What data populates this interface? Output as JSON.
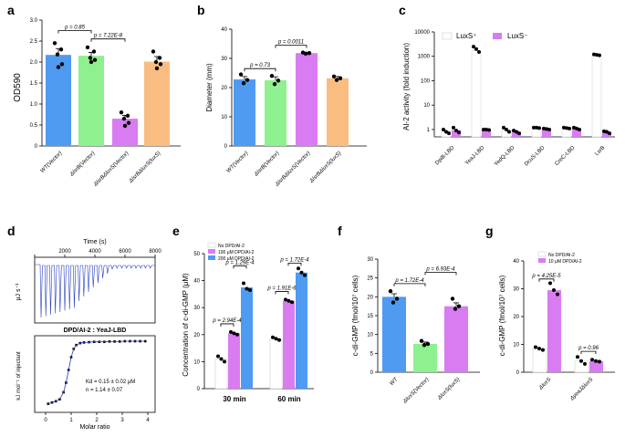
{
  "panels": {
    "a": "a",
    "b": "b",
    "c": "c",
    "d": "d",
    "e": "e",
    "f": "f",
    "g": "g"
  },
  "colors": {
    "blue": "#4f9bf2",
    "green": "#8ff08f",
    "purple": "#d97cf2",
    "orange": "#f9bd82"
  },
  "chart_data": [
    {
      "id": "a",
      "type": "bar",
      "title": "",
      "xlabel": "",
      "ylabel": "OD590",
      "ylim": [
        0,
        3.0
      ],
      "yticks": [
        "0",
        "0.5",
        "1.0",
        "1.5",
        "2.0",
        "2.5",
        "3.0"
      ],
      "categories": [
        "WT(Vector)",
        "ΔlsrB(Vector)",
        "ΔlsrBΔluxS(Vector)",
        "ΔlsrBΔluxS(luxS)"
      ],
      "values": [
        2.17,
        2.15,
        0.65,
        2.01
      ],
      "errors": [
        0.15,
        0.08,
        0.08,
        0.12
      ],
      "points": [
        [
          2.45,
          2.3,
          2.18,
          1.95,
          1.88
        ],
        [
          2.35,
          2.25,
          2.1,
          2.05,
          2.0
        ],
        [
          0.8,
          0.72,
          0.65,
          0.55,
          0.48
        ],
        [
          2.25,
          2.1,
          2.0,
          1.95,
          1.85
        ]
      ],
      "comparisons": [
        {
          "p": "p = 0.85"
        },
        {
          "p": "p = 7.22E-8"
        }
      ]
    },
    {
      "id": "b",
      "type": "bar",
      "ylabel": "Diameter (mm)",
      "ylim": [
        0,
        40
      ],
      "yticks": [
        "0",
        "10",
        "20",
        "30",
        "40"
      ],
      "categories": [
        "WT(Vector)",
        "ΔlsrB(Vector)",
        "ΔlsrBΔluxS(Vector)",
        "ΔlsrBΔluxS(luxS)"
      ],
      "values": [
        22.8,
        22.5,
        31.8,
        23.2
      ],
      "errors": [
        1.0,
        1.2,
        0.3,
        0.6
      ],
      "points": [
        [
          24.5,
          22.6,
          21.5
        ],
        [
          24,
          22.4,
          21.2
        ],
        [
          32,
          31.8,
          31.6
        ],
        [
          23.8,
          23.2,
          22.6
        ]
      ],
      "comparisons": [
        {
          "p": "p = 0.73"
        },
        {
          "p": "p = 0.0011"
        }
      ]
    },
    {
      "id": "c",
      "type": "bar",
      "ylabel": "AI-2 activity (fold induction)",
      "yscale": "log",
      "yticks": [
        "1",
        "10",
        "100",
        "1000",
        "10000"
      ],
      "categories": [
        "DpiB-LBD",
        "YeaJ-LBD",
        "YedQ-LBD",
        "DcuS-LBD",
        "CreC-LBD",
        "LsrB"
      ],
      "legend": [
        "LuxS⁺",
        "LuxS⁻"
      ],
      "series": [
        {
          "name": "LuxS⁺",
          "values": [
            0.85,
            1700,
            1.0,
            1.1,
            1.1,
            1150
          ],
          "points": [
            [
              1.0,
              0.8,
              0.7
            ],
            [
              2500,
              2000,
              1500
            ],
            [
              1.2,
              1.0,
              0.8
            ],
            [
              1.2,
              1.2,
              1.15
            ],
            [
              1.2,
              1.15,
              1.1
            ],
            [
              1200,
              1150,
              1100
            ]
          ]
        },
        {
          "name": "LuxS⁻",
          "values": [
            0.95,
            1.0,
            0.8,
            1.05,
            1.1,
            0.75
          ],
          "points": [
            [
              1.2,
              0.9,
              0.75
            ],
            [
              1.0,
              1.0,
              0.95
            ],
            [
              0.9,
              0.8,
              0.7
            ],
            [
              1.1,
              1.05,
              1.0
            ],
            [
              1.2,
              1.1,
              1.0
            ],
            [
              0.85,
              0.8,
              0.7
            ]
          ]
        }
      ]
    },
    {
      "id": "d",
      "type": "line",
      "title": "DPD/AI-2 : YeaJ-LBD",
      "top_xlabel": "Time (s)",
      "top_xticks": [
        "0",
        "2000",
        "4000",
        "6000",
        "8000"
      ],
      "top_ylabel": "μJ s⁻¹",
      "bottom_xlabel": "Molar ratio",
      "bottom_xticks": [
        "0",
        "1",
        "2",
        "3",
        "4"
      ],
      "bottom_ylabel": "kJ mol⁻¹ of injectant",
      "annotation_kd": "Kd = 0.15 ± 0.02 μM",
      "annotation_n": "n = 1.14 ± 0.07",
      "binding": {
        "x": [
          0.1,
          0.25,
          0.4,
          0.55,
          0.7,
          0.8,
          0.9,
          1.0,
          1.1,
          1.2,
          1.35,
          1.5,
          1.7,
          1.9,
          2.1,
          2.3,
          2.5,
          2.7,
          2.9,
          3.1,
          3.3,
          3.5,
          3.7,
          3.9
        ],
        "y": [
          -9.8,
          -9.6,
          -9.4,
          -9.1,
          -8.0,
          -6.5,
          -4.5,
          -2.5,
          -1.2,
          -0.6,
          -0.3,
          -0.2,
          -0.15,
          -0.1,
          -0.1,
          -0.1,
          -0.05,
          -0.05,
          -0.05,
          0,
          0,
          0,
          0,
          0
        ]
      }
    },
    {
      "id": "e",
      "type": "bar",
      "ylabel": "Concentration of c-di-GMP (μM)",
      "ylim": [
        0,
        50
      ],
      "yticks": [
        "0",
        "10",
        "20",
        "30",
        "40",
        "50"
      ],
      "categories": [
        "30 min",
        "60 min"
      ],
      "legend": [
        "No  DPD/AI-2",
        "100 μM  DPD/AI-2",
        "200 μM  DPD/AI-2"
      ],
      "series": [
        {
          "name": "No DPD/AI-2",
          "values": [
            11.0,
            18.5
          ],
          "points": [
            [
              12,
              11,
              10
            ],
            [
              19,
              18.5,
              18
            ]
          ]
        },
        {
          "name": "100 μM DPD/AI-2",
          "values": [
            20.5,
            32.5
          ],
          "points": [
            [
              21,
              20.5,
              20
            ],
            [
              33,
              32.5,
              32
            ]
          ]
        },
        {
          "name": "200 μM DPD/AI-2",
          "values": [
            37.5,
            43.0
          ],
          "points": [
            [
              39,
              37,
              36.5
            ],
            [
              44.5,
              43,
              42
            ]
          ]
        }
      ],
      "comparisons": [
        {
          "p": "p = 2.94E-4"
        },
        {
          "p": "p = 1.29E-4"
        },
        {
          "p": "p = 1.91E-6"
        },
        {
          "p": "p = 1.72E-4"
        }
      ]
    },
    {
      "id": "f",
      "type": "bar",
      "ylabel": "c-di-GMP (fmol/10⁷ cells)",
      "ylim": [
        0,
        30
      ],
      "yticks": [
        "0",
        "5",
        "10",
        "15",
        "20",
        "25",
        "30"
      ],
      "categories": [
        "WT",
        "ΔluxS(Vector)",
        "ΔluxS(luxS)"
      ],
      "values": [
        20.0,
        7.5,
        17.5
      ],
      "errors": [
        0.8,
        0.5,
        0.9
      ],
      "points": [
        [
          21.5,
          19.5,
          18.5
        ],
        [
          8.3,
          7.5,
          7.2
        ],
        [
          19.5,
          17.5,
          16.8
        ]
      ],
      "comparisons": [
        {
          "p": "p = 1.72E-4"
        },
        {
          "p": "p = 6.93E-4"
        }
      ]
    },
    {
      "id": "g",
      "type": "bar",
      "ylabel": "c-di-GMP (fmol/10⁷ cells)",
      "ylim": [
        0,
        40
      ],
      "yticks": [
        "0",
        "10",
        "20",
        "30",
        "40"
      ],
      "categories": [
        "ΔluxS",
        "ΔyeaJΔluxS"
      ],
      "legend": [
        "No  DPD/AI-2",
        "10 μM  DPD/AI-2"
      ],
      "series": [
        {
          "name": "No DPD/AI-2",
          "values": [
            8.5,
            4.0
          ],
          "points": [
            [
              9,
              8.5,
              8
            ],
            [
              5.5,
              4,
              3
            ]
          ]
        },
        {
          "name": "10 μM DPD/AI-2",
          "values": [
            29.5,
            4.0
          ],
          "points": [
            [
              32,
              29.5,
              28
            ],
            [
              4.5,
              4,
              3.8
            ]
          ]
        }
      ],
      "comparisons": [
        {
          "p": "p = 4.25E-5"
        },
        {
          "p": "p = 0.96"
        }
      ]
    }
  ]
}
